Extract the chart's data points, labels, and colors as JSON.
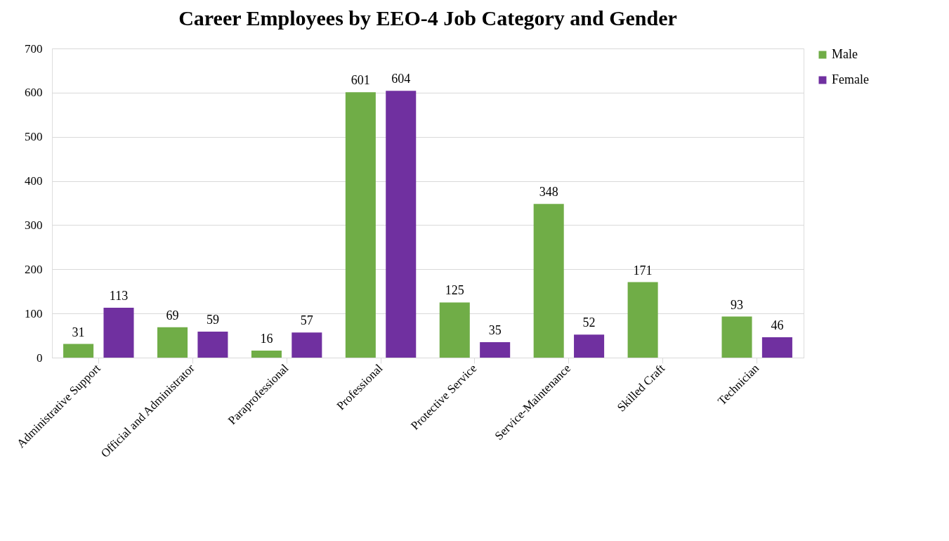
{
  "chart_data": {
    "type": "bar",
    "title": "Career Employees by EEO-4 Job Category and Gender",
    "categories": [
      "Administrative Support",
      "Official and Administrator",
      "Paraprofessional",
      "Professional",
      "Protective Service",
      "Service-Maintenance",
      "Skilled Craft",
      "Technician"
    ],
    "series": [
      {
        "name": "Male",
        "color": "#70ad47",
        "values": [
          31,
          69,
          16,
          601,
          125,
          348,
          171,
          93
        ]
      },
      {
        "name": "Female",
        "color": "#7030a0",
        "values": [
          113,
          59,
          57,
          604,
          35,
          52,
          null,
          46
        ]
      }
    ],
    "ylim": [
      0,
      700
    ],
    "yticks": [
      0,
      100,
      200,
      300,
      400,
      500,
      600,
      700
    ],
    "grid": "y",
    "legend": "right",
    "data_labels": true
  }
}
